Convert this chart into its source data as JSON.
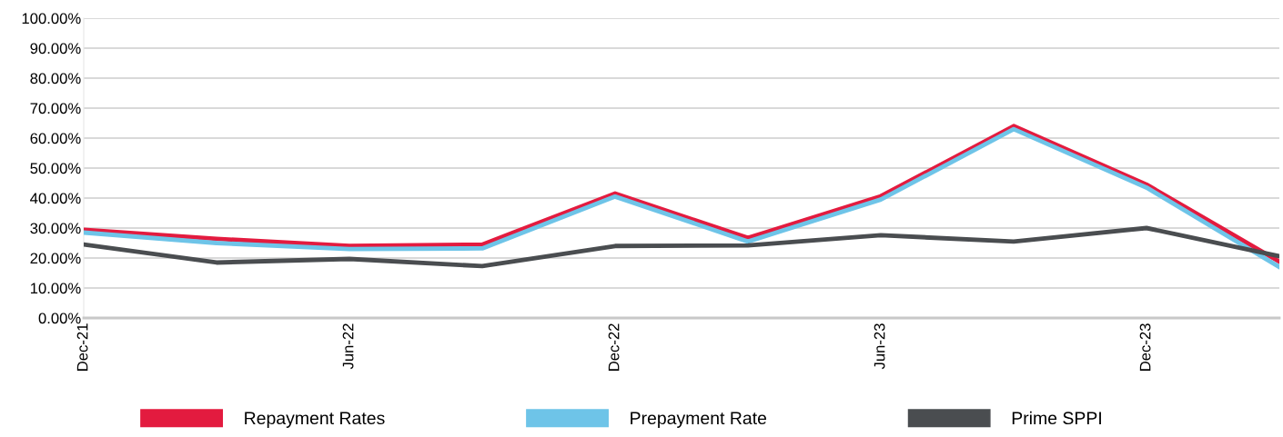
{
  "chart_data": {
    "type": "line",
    "categories": [
      "Dec-21",
      null,
      "Jun-22",
      null,
      "Dec-22",
      null,
      "Jun-23",
      null,
      "Dec-23",
      null
    ],
    "series": [
      {
        "name": "Repayment Rates",
        "color": "#e31b3f",
        "values": [
          29.4,
          26.4,
          24.0,
          24.5,
          41.5,
          26.7,
          40.6,
          64.0,
          44.5,
          18.8
        ]
      },
      {
        "name": "Prepayment Rate",
        "color": "#6ec4e8",
        "values": [
          28.5,
          25.0,
          23.0,
          23.2,
          40.5,
          25.5,
          39.5,
          63.0,
          43.5,
          17.0
        ]
      },
      {
        "name": "Prime SPPI",
        "color": "#4a4d50",
        "values": [
          24.5,
          18.5,
          19.7,
          17.3,
          24.0,
          24.2,
          27.6,
          25.5,
          30.0,
          20.6
        ]
      }
    ],
    "ylim": [
      0,
      100
    ],
    "yticks": [
      {
        "value": 0,
        "label": "0.00%"
      },
      {
        "value": 10,
        "label": "10.00%"
      },
      {
        "value": 20,
        "label": "20.00%"
      },
      {
        "value": 30,
        "label": "30.00%"
      },
      {
        "value": 40,
        "label": "40.00%"
      },
      {
        "value": 50,
        "label": "50.00%"
      },
      {
        "value": 60,
        "label": "60.00%"
      },
      {
        "value": 70,
        "label": "70.00%"
      },
      {
        "value": 80,
        "label": "80.00%"
      },
      {
        "value": 90,
        "label": "90.00%"
      },
      {
        "value": 100,
        "label": "100.00%"
      }
    ],
    "grid": "y",
    "legend": "bottom",
    "marker": "none",
    "line_style": "solid"
  }
}
